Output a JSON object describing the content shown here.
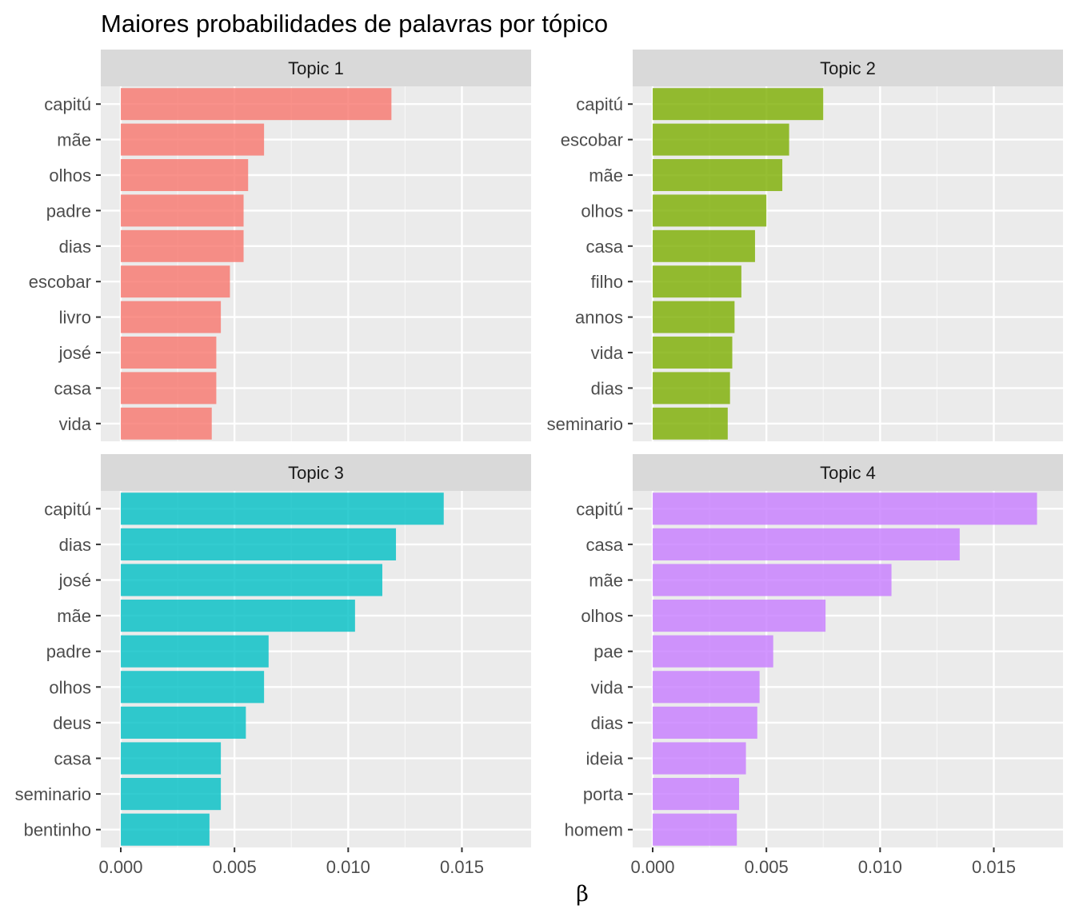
{
  "chart_data": {
    "type": "bar",
    "orientation": "horizontal",
    "title": "Maiores probabilidades de palavras por tópico",
    "xlabel": "β",
    "ylabel": "",
    "xlim": [
      0,
      0.0175
    ],
    "x_ticks": [
      {
        "value": 0.0,
        "label": "0.000"
      },
      {
        "value": 0.005,
        "label": "0.005"
      },
      {
        "value": 0.01,
        "label": "0.010"
      },
      {
        "value": 0.015,
        "label": "0.015"
      }
    ],
    "grid": true,
    "legend": "none",
    "facets": [
      {
        "name": "Topic 1",
        "color": "#F8766D",
        "categories": [
          "capitú",
          "mãe",
          "olhos",
          "padre",
          "dias",
          "escobar",
          "livro",
          "josé",
          "casa",
          "vida"
        ],
        "values": [
          0.0119,
          0.0063,
          0.0056,
          0.0054,
          0.0054,
          0.0048,
          0.0044,
          0.0042,
          0.0042,
          0.004
        ]
      },
      {
        "name": "Topic 2",
        "color": "#7CAE00",
        "categories": [
          "capitú",
          "escobar",
          "mãe",
          "olhos",
          "casa",
          "filho",
          "annos",
          "vida",
          "dias",
          "seminario"
        ],
        "values": [
          0.0075,
          0.006,
          0.0057,
          0.005,
          0.0045,
          0.0039,
          0.0036,
          0.0035,
          0.0034,
          0.0033
        ]
      },
      {
        "name": "Topic 3",
        "color": "#00BFC4",
        "categories": [
          "capitú",
          "dias",
          "josé",
          "mãe",
          "padre",
          "olhos",
          "deus",
          "casa",
          "seminario",
          "bentinho"
        ],
        "values": [
          0.0142,
          0.0121,
          0.0115,
          0.0103,
          0.0065,
          0.0063,
          0.0055,
          0.0044,
          0.0044,
          0.0039
        ]
      },
      {
        "name": "Topic 4",
        "color": "#C77CFF",
        "categories": [
          "capitú",
          "casa",
          "mãe",
          "olhos",
          "pae",
          "vida",
          "dias",
          "ideia",
          "porta",
          "homem"
        ],
        "values": [
          0.0169,
          0.0135,
          0.0105,
          0.0076,
          0.0053,
          0.0047,
          0.0046,
          0.0041,
          0.0038,
          0.0037
        ]
      }
    ]
  }
}
